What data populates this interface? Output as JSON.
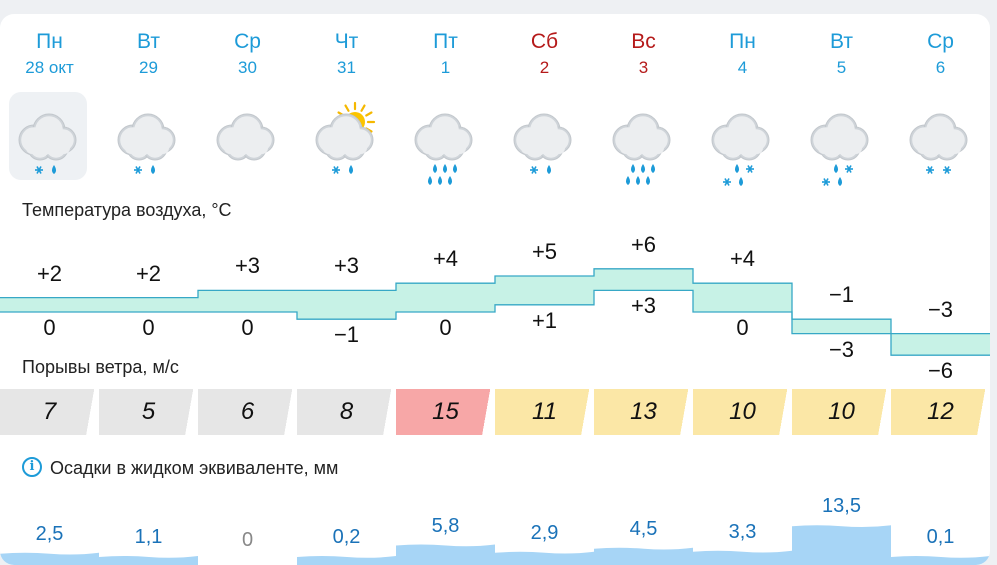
{
  "days": [
    {
      "name": "Пн",
      "date": "28 окт",
      "weekend": false,
      "icon": "cloud-snow-rain-icon",
      "tmax": "+2",
      "tmin": "0",
      "gust": "7",
      "precip": "2,5",
      "precip_value": 2.5
    },
    {
      "name": "Вт",
      "date": "29",
      "weekend": false,
      "icon": "cloud-snow-rain-icon",
      "tmax": "+2",
      "tmin": "0",
      "gust": "5",
      "precip": "1,1",
      "precip_value": 1.1
    },
    {
      "name": "Ср",
      "date": "30",
      "weekend": false,
      "icon": "cloud-icon",
      "tmax": "+3",
      "tmin": "0",
      "gust": "6",
      "precip": "0",
      "precip_value": 0
    },
    {
      "name": "Чт",
      "date": "31",
      "weekend": false,
      "icon": "sun-cloud-snow-rain-icon",
      "tmax": "+3",
      "tmin": "−1",
      "gust": "8",
      "precip": "0,2",
      "precip_value": 0.2
    },
    {
      "name": "Пт",
      "date": "1",
      "weekend": false,
      "icon": "cloud-rain-icon",
      "tmax": "+4",
      "tmin": "0",
      "gust": "15",
      "precip": "5,8",
      "precip_value": 5.8
    },
    {
      "name": "Сб",
      "date": "2",
      "weekend": true,
      "icon": "cloud-snow-rain-icon",
      "tmax": "+5",
      "tmin": "+1",
      "gust": "11",
      "precip": "2,9",
      "precip_value": 2.9
    },
    {
      "name": "Вс",
      "date": "3",
      "weekend": true,
      "icon": "cloud-rain-icon",
      "tmax": "+6",
      "tmin": "+3",
      "gust": "13",
      "precip": "4,5",
      "precip_value": 4.5
    },
    {
      "name": "Пн",
      "date": "4",
      "weekend": false,
      "icon": "cloud-snow-rain-heavy-icon",
      "tmax": "+4",
      "tmin": "0",
      "gust": "10",
      "precip": "3,3",
      "precip_value": 3.3
    },
    {
      "name": "Вт",
      "date": "5",
      "weekend": false,
      "icon": "cloud-snow-rain-heavy-icon",
      "tmax": "−1",
      "tmin": "−3",
      "gust": "10",
      "precip": "13,5",
      "precip_value": 13.5
    },
    {
      "name": "Ср",
      "date": "6",
      "weekend": false,
      "icon": "cloud-snow-icon",
      "tmax": "−3",
      "tmin": "−6",
      "gust": "12",
      "precip": "0,1",
      "precip_value": 0.1
    }
  ],
  "temperature": {
    "title": "Температура воздуха, °C",
    "max_values": [
      2,
      2,
      3,
      3,
      4,
      5,
      6,
      4,
      -1,
      -3
    ],
    "min_values": [
      0,
      0,
      0,
      -1,
      0,
      1,
      3,
      0,
      -3,
      -6
    ]
  },
  "wind": {
    "title": "Порывы ветра, м/с",
    "values": [
      7,
      5,
      6,
      8,
      15,
      11,
      13,
      10,
      10,
      12
    ]
  },
  "precip": {
    "title": "Осадки в жидком эквиваленте, мм",
    "info_icon": "info-icon"
  },
  "colors": {
    "accent": "#1d9bd8",
    "weekend": "#b51a1a",
    "temp_fill": "#c7f2e6",
    "temp_line": "#37a8c6",
    "gust_calm": "#e6e6e6",
    "gust_moderate": "#fbe7a6",
    "gust_strong": "#f7a7a7",
    "precip_fill": "#a7d5f6"
  }
}
